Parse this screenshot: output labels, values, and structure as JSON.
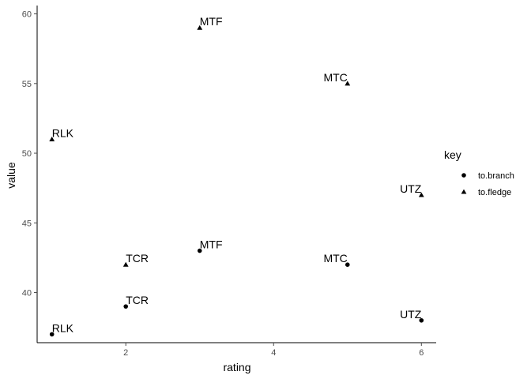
{
  "chart_data": {
    "type": "scatter",
    "xlabel": "rating",
    "ylabel": "value",
    "xlim": [
      0.8,
      6.2
    ],
    "ylim": [
      36.4,
      60.6
    ],
    "x_ticks": [
      2,
      4,
      6
    ],
    "y_ticks": [
      40,
      45,
      50,
      55,
      60
    ],
    "grid": false,
    "legend": {
      "title": "key",
      "position": "right",
      "entries": [
        {
          "label": "to.branch",
          "shape": "circle"
        },
        {
          "label": "to.fledge",
          "shape": "triangle"
        }
      ]
    },
    "series": [
      {
        "name": "to.branch",
        "shape": "circle",
        "points": [
          {
            "x": 1,
            "y": 37,
            "label": "RLK"
          },
          {
            "x": 2,
            "y": 39,
            "label": "TCR"
          },
          {
            "x": 3,
            "y": 43,
            "label": "MTF"
          },
          {
            "x": 5,
            "y": 42,
            "label": "MTC"
          },
          {
            "x": 6,
            "y": 38,
            "label": "UTZ"
          }
        ]
      },
      {
        "name": "to.fledge",
        "shape": "triangle",
        "points": [
          {
            "x": 1,
            "y": 51,
            "label": "RLK"
          },
          {
            "x": 2,
            "y": 42,
            "label": "TCR"
          },
          {
            "x": 3,
            "y": 59,
            "label": "MTF"
          },
          {
            "x": 5,
            "y": 55,
            "label": "MTC"
          },
          {
            "x": 6,
            "y": 47,
            "label": "UTZ"
          }
        ]
      }
    ],
    "colors": {
      "points": "#000000",
      "text": "#000000",
      "ticks": "#4d4d4d",
      "axis": "#000000"
    }
  }
}
